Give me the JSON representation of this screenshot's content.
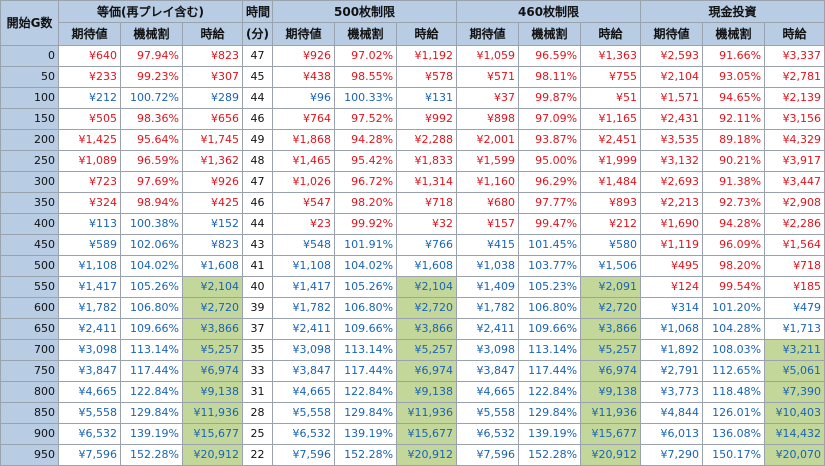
{
  "header": {
    "start": "開始G数",
    "time": "時間",
    "time_unit": "(分)",
    "groups": [
      "等価(再プレイ含む)",
      "500枚制限",
      "460枚制限",
      "現金投資"
    ],
    "sub": [
      "期待値",
      "機械割",
      "時給"
    ]
  },
  "colors": {
    "negative": "#e0141e",
    "positive": "#1a64b4",
    "highlight": "#c4d79b",
    "header": "#b8cce4"
  },
  "rows": [
    {
      "g": "0",
      "t": "47",
      "c": [
        {
          "ev": "¥640",
          "rt": "97.94%",
          "hr": "¥823",
          "s": "n",
          "h": 0
        },
        {
          "ev": "¥926",
          "rt": "97.02%",
          "hr": "¥1,192",
          "s": "n",
          "h": 0
        },
        {
          "ev": "¥1,059",
          "rt": "96.59%",
          "hr": "¥1,363",
          "s": "n",
          "h": 0
        },
        {
          "ev": "¥2,593",
          "rt": "91.66%",
          "hr": "¥3,337",
          "s": "n",
          "h": 0
        }
      ]
    },
    {
      "g": "50",
      "t": "45",
      "c": [
        {
          "ev": "¥233",
          "rt": "99.23%",
          "hr": "¥307",
          "s": "n",
          "h": 0
        },
        {
          "ev": "¥438",
          "rt": "98.55%",
          "hr": "¥578",
          "s": "n",
          "h": 0
        },
        {
          "ev": "¥571",
          "rt": "98.11%",
          "hr": "¥755",
          "s": "n",
          "h": 0
        },
        {
          "ev": "¥2,104",
          "rt": "93.05%",
          "hr": "¥2,781",
          "s": "n",
          "h": 0
        }
      ]
    },
    {
      "g": "100",
      "t": "44",
      "c": [
        {
          "ev": "¥212",
          "rt": "100.72%",
          "hr": "¥289",
          "s": "p",
          "h": 0
        },
        {
          "ev": "¥96",
          "rt": "100.33%",
          "hr": "¥131",
          "s": "p",
          "h": 0
        },
        {
          "ev": "¥37",
          "rt": "99.87%",
          "hr": "¥51",
          "s": "n",
          "h": 0
        },
        {
          "ev": "¥1,571",
          "rt": "94.65%",
          "hr": "¥2,139",
          "s": "n",
          "h": 0
        }
      ]
    },
    {
      "g": "150",
      "t": "46",
      "c": [
        {
          "ev": "¥505",
          "rt": "98.36%",
          "hr": "¥656",
          "s": "n",
          "h": 0
        },
        {
          "ev": "¥764",
          "rt": "97.52%",
          "hr": "¥992",
          "s": "n",
          "h": 0
        },
        {
          "ev": "¥898",
          "rt": "97.09%",
          "hr": "¥1,165",
          "s": "n",
          "h": 0
        },
        {
          "ev": "¥2,431",
          "rt": "92.11%",
          "hr": "¥3,156",
          "s": "n",
          "h": 0
        }
      ]
    },
    {
      "g": "200",
      "t": "49",
      "c": [
        {
          "ev": "¥1,425",
          "rt": "95.64%",
          "hr": "¥1,745",
          "s": "n",
          "h": 0
        },
        {
          "ev": "¥1,868",
          "rt": "94.28%",
          "hr": "¥2,288",
          "s": "n",
          "h": 0
        },
        {
          "ev": "¥2,001",
          "rt": "93.87%",
          "hr": "¥2,451",
          "s": "n",
          "h": 0
        },
        {
          "ev": "¥3,535",
          "rt": "89.18%",
          "hr": "¥4,329",
          "s": "n",
          "h": 0
        }
      ]
    },
    {
      "g": "250",
      "t": "48",
      "c": [
        {
          "ev": "¥1,089",
          "rt": "96.59%",
          "hr": "¥1,362",
          "s": "n",
          "h": 0
        },
        {
          "ev": "¥1,465",
          "rt": "95.42%",
          "hr": "¥1,833",
          "s": "n",
          "h": 0
        },
        {
          "ev": "¥1,599",
          "rt": "95.00%",
          "hr": "¥1,999",
          "s": "n",
          "h": 0
        },
        {
          "ev": "¥3,132",
          "rt": "90.21%",
          "hr": "¥3,917",
          "s": "n",
          "h": 0
        }
      ]
    },
    {
      "g": "300",
      "t": "47",
      "c": [
        {
          "ev": "¥723",
          "rt": "97.69%",
          "hr": "¥926",
          "s": "n",
          "h": 0
        },
        {
          "ev": "¥1,026",
          "rt": "96.72%",
          "hr": "¥1,314",
          "s": "n",
          "h": 0
        },
        {
          "ev": "¥1,160",
          "rt": "96.29%",
          "hr": "¥1,484",
          "s": "n",
          "h": 0
        },
        {
          "ev": "¥2,693",
          "rt": "91.38%",
          "hr": "¥3,447",
          "s": "n",
          "h": 0
        }
      ]
    },
    {
      "g": "350",
      "t": "46",
      "c": [
        {
          "ev": "¥324",
          "rt": "98.94%",
          "hr": "¥425",
          "s": "n",
          "h": 0
        },
        {
          "ev": "¥547",
          "rt": "98.20%",
          "hr": "¥718",
          "s": "n",
          "h": 0
        },
        {
          "ev": "¥680",
          "rt": "97.77%",
          "hr": "¥893",
          "s": "n",
          "h": 0
        },
        {
          "ev": "¥2,213",
          "rt": "92.73%",
          "hr": "¥2,908",
          "s": "n",
          "h": 0
        }
      ]
    },
    {
      "g": "400",
      "t": "44",
      "c": [
        {
          "ev": "¥113",
          "rt": "100.38%",
          "hr": "¥152",
          "s": "p",
          "h": 0
        },
        {
          "ev": "¥23",
          "rt": "99.92%",
          "hr": "¥32",
          "s": "n",
          "h": 0
        },
        {
          "ev": "¥157",
          "rt": "99.47%",
          "hr": "¥212",
          "s": "n",
          "h": 0
        },
        {
          "ev": "¥1,690",
          "rt": "94.28%",
          "hr": "¥2,286",
          "s": "n",
          "h": 0
        }
      ]
    },
    {
      "g": "450",
      "t": "43",
      "c": [
        {
          "ev": "¥589",
          "rt": "102.06%",
          "hr": "¥823",
          "s": "p",
          "h": 0
        },
        {
          "ev": "¥548",
          "rt": "101.91%",
          "hr": "¥766",
          "s": "p",
          "h": 0
        },
        {
          "ev": "¥415",
          "rt": "101.45%",
          "hr": "¥580",
          "s": "p",
          "h": 0
        },
        {
          "ev": "¥1,119",
          "rt": "96.09%",
          "hr": "¥1,564",
          "s": "n",
          "h": 0
        }
      ]
    },
    {
      "g": "500",
      "t": "41",
      "c": [
        {
          "ev": "¥1,108",
          "rt": "104.02%",
          "hr": "¥1,608",
          "s": "p",
          "h": 0
        },
        {
          "ev": "¥1,108",
          "rt": "104.02%",
          "hr": "¥1,608",
          "s": "p",
          "h": 0
        },
        {
          "ev": "¥1,038",
          "rt": "103.77%",
          "hr": "¥1,506",
          "s": "p",
          "h": 0
        },
        {
          "ev": "¥495",
          "rt": "98.20%",
          "hr": "¥718",
          "s": "n",
          "h": 0
        }
      ]
    },
    {
      "g": "550",
      "t": "40",
      "c": [
        {
          "ev": "¥1,417",
          "rt": "105.26%",
          "hr": "¥2,104",
          "s": "p",
          "h": 1
        },
        {
          "ev": "¥1,417",
          "rt": "105.26%",
          "hr": "¥2,104",
          "s": "p",
          "h": 1
        },
        {
          "ev": "¥1,409",
          "rt": "105.23%",
          "hr": "¥2,091",
          "s": "p",
          "h": 1
        },
        {
          "ev": "¥124",
          "rt": "99.54%",
          "hr": "¥185",
          "s": "n",
          "h": 0
        }
      ]
    },
    {
      "g": "600",
      "t": "39",
      "c": [
        {
          "ev": "¥1,782",
          "rt": "106.80%",
          "hr": "¥2,720",
          "s": "p",
          "h": 1
        },
        {
          "ev": "¥1,782",
          "rt": "106.80%",
          "hr": "¥2,720",
          "s": "p",
          "h": 1
        },
        {
          "ev": "¥1,782",
          "rt": "106.80%",
          "hr": "¥2,720",
          "s": "p",
          "h": 1
        },
        {
          "ev": "¥314",
          "rt": "101.20%",
          "hr": "¥479",
          "s": "p",
          "h": 0
        }
      ]
    },
    {
      "g": "650",
      "t": "37",
      "c": [
        {
          "ev": "¥2,411",
          "rt": "109.66%",
          "hr": "¥3,866",
          "s": "p",
          "h": 1
        },
        {
          "ev": "¥2,411",
          "rt": "109.66%",
          "hr": "¥3,866",
          "s": "p",
          "h": 1
        },
        {
          "ev": "¥2,411",
          "rt": "109.66%",
          "hr": "¥3,866",
          "s": "p",
          "h": 1
        },
        {
          "ev": "¥1,068",
          "rt": "104.28%",
          "hr": "¥1,713",
          "s": "p",
          "h": 0
        }
      ]
    },
    {
      "g": "700",
      "t": "35",
      "c": [
        {
          "ev": "¥3,098",
          "rt": "113.14%",
          "hr": "¥5,257",
          "s": "p",
          "h": 1
        },
        {
          "ev": "¥3,098",
          "rt": "113.14%",
          "hr": "¥5,257",
          "s": "p",
          "h": 1
        },
        {
          "ev": "¥3,098",
          "rt": "113.14%",
          "hr": "¥5,257",
          "s": "p",
          "h": 1
        },
        {
          "ev": "¥1,892",
          "rt": "108.03%",
          "hr": "¥3,211",
          "s": "p",
          "h": 1
        }
      ]
    },
    {
      "g": "750",
      "t": "33",
      "c": [
        {
          "ev": "¥3,847",
          "rt": "117.44%",
          "hr": "¥6,974",
          "s": "p",
          "h": 1
        },
        {
          "ev": "¥3,847",
          "rt": "117.44%",
          "hr": "¥6,974",
          "s": "p",
          "h": 1
        },
        {
          "ev": "¥3,847",
          "rt": "117.44%",
          "hr": "¥6,974",
          "s": "p",
          "h": 1
        },
        {
          "ev": "¥2,791",
          "rt": "112.65%",
          "hr": "¥5,061",
          "s": "p",
          "h": 1
        }
      ]
    },
    {
      "g": "800",
      "t": "31",
      "c": [
        {
          "ev": "¥4,665",
          "rt": "122.84%",
          "hr": "¥9,138",
          "s": "p",
          "h": 1
        },
        {
          "ev": "¥4,665",
          "rt": "122.84%",
          "hr": "¥9,138",
          "s": "p",
          "h": 1
        },
        {
          "ev": "¥4,665",
          "rt": "122.84%",
          "hr": "¥9,138",
          "s": "p",
          "h": 1
        },
        {
          "ev": "¥3,773",
          "rt": "118.48%",
          "hr": "¥7,390",
          "s": "p",
          "h": 1
        }
      ]
    },
    {
      "g": "850",
      "t": "28",
      "c": [
        {
          "ev": "¥5,558",
          "rt": "129.84%",
          "hr": "¥11,936",
          "s": "p",
          "h": 1
        },
        {
          "ev": "¥5,558",
          "rt": "129.84%",
          "hr": "¥11,936",
          "s": "p",
          "h": 1
        },
        {
          "ev": "¥5,558",
          "rt": "129.84%",
          "hr": "¥11,936",
          "s": "p",
          "h": 1
        },
        {
          "ev": "¥4,844",
          "rt": "126.01%",
          "hr": "¥10,403",
          "s": "p",
          "h": 1
        }
      ]
    },
    {
      "g": "900",
      "t": "25",
      "c": [
        {
          "ev": "¥6,532",
          "rt": "139.19%",
          "hr": "¥15,677",
          "s": "p",
          "h": 1
        },
        {
          "ev": "¥6,532",
          "rt": "139.19%",
          "hr": "¥15,677",
          "s": "p",
          "h": 1
        },
        {
          "ev": "¥6,532",
          "rt": "139.19%",
          "hr": "¥15,677",
          "s": "p",
          "h": 1
        },
        {
          "ev": "¥6,013",
          "rt": "136.08%",
          "hr": "¥14,432",
          "s": "p",
          "h": 1
        }
      ]
    },
    {
      "g": "950",
      "t": "22",
      "c": [
        {
          "ev": "¥7,596",
          "rt": "152.28%",
          "hr": "¥20,912",
          "s": "p",
          "h": 1
        },
        {
          "ev": "¥7,596",
          "rt": "152.28%",
          "hr": "¥20,912",
          "s": "p",
          "h": 1
        },
        {
          "ev": "¥7,596",
          "rt": "152.28%",
          "hr": "¥20,912",
          "s": "p",
          "h": 1
        },
        {
          "ev": "¥7,290",
          "rt": "150.17%",
          "hr": "¥20,070",
          "s": "p",
          "h": 1
        }
      ]
    }
  ]
}
